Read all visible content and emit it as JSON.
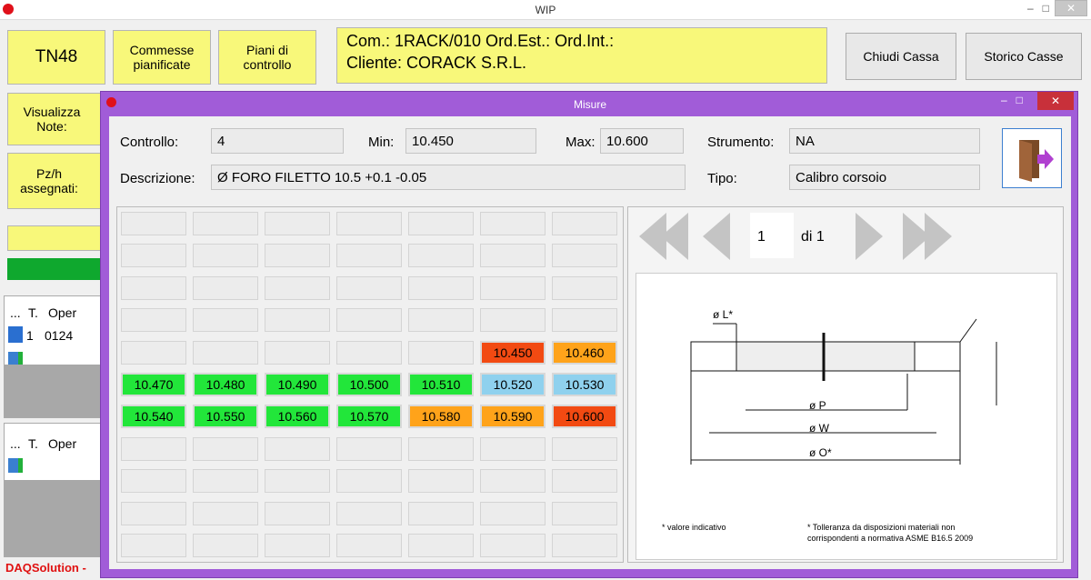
{
  "main_window": {
    "title": "WIP",
    "buttons": {
      "machine": "TN48",
      "planned": "Commesse pianificate",
      "plans": "Piani di controllo",
      "close_box": "Chiudi Cassa",
      "box_history": "Storico Casse",
      "notes": "Visualizza Note:",
      "pieces": "Pz/h assegnati:"
    },
    "order_info": {
      "line1": "Com.: 1RACK/010  Ord.Est.:  Ord.Int.:",
      "line2": "Cliente: CORACK S.R.L."
    },
    "operators_table_1": {
      "headers": [
        "...",
        "T.",
        "Oper"
      ],
      "row": [
        "1",
        "0124"
      ]
    },
    "operators_table_2": {
      "headers": [
        "...",
        "T.",
        "Oper"
      ]
    },
    "footer": "DAQSolution -"
  },
  "dialog": {
    "title": "Misure",
    "fields": {
      "control_label": "Controllo:",
      "control_value": "4",
      "min_label": "Min:",
      "min_value": "10.450",
      "max_label": "Max:",
      "max_value": "10.600",
      "instrument_label": "Strumento:",
      "instrument_value": "NA",
      "description_label": "Descrizione:",
      "description_value": "Ø FORO FILETTO 10.5 +0.1 -0.05",
      "type_label": "Tipo:",
      "type_value": "Calibro corsoio"
    },
    "grid": {
      "rows": [
        [
          null,
          null,
          null,
          null,
          null,
          null,
          null
        ],
        [
          null,
          null,
          null,
          null,
          null,
          null,
          null
        ],
        [
          null,
          null,
          null,
          null,
          null,
          null,
          null
        ],
        [
          null,
          null,
          null,
          null,
          null,
          null,
          null
        ],
        [
          null,
          null,
          null,
          null,
          null,
          {
            "text": "10.450",
            "color": "#f24a12"
          },
          {
            "text": "10.460",
            "color": "#ffa31a"
          }
        ],
        [
          {
            "text": "10.470",
            "color": "#22e63a"
          },
          {
            "text": "10.480",
            "color": "#22e63a"
          },
          {
            "text": "10.490",
            "color": "#22e63a"
          },
          {
            "text": "10.500",
            "color": "#22e63a"
          },
          {
            "text": "10.510",
            "color": "#22e63a"
          },
          {
            "text": "10.520",
            "color": "#8fd1ee"
          },
          {
            "text": "10.530",
            "color": "#8fd1ee"
          }
        ],
        [
          {
            "text": "10.540",
            "color": "#22e63a"
          },
          {
            "text": "10.550",
            "color": "#22e63a"
          },
          {
            "text": "10.560",
            "color": "#22e63a"
          },
          {
            "text": "10.570",
            "color": "#22e63a"
          },
          {
            "text": "10.580",
            "color": "#ffa31a"
          },
          {
            "text": "10.590",
            "color": "#ffa31a"
          },
          {
            "text": "10.600",
            "color": "#f24a12"
          }
        ],
        [
          null,
          null,
          null,
          null,
          null,
          null,
          null
        ],
        [
          null,
          null,
          null,
          null,
          null,
          null,
          null
        ],
        [
          null,
          null,
          null,
          null,
          null,
          null,
          null
        ],
        [
          null,
          null,
          null,
          null,
          null,
          null,
          null
        ]
      ]
    },
    "pager": {
      "page": "1",
      "of": "di 1"
    },
    "drawing": {
      "l": "ø L*",
      "p": "ø P",
      "w": "ø W",
      "o": "ø O*",
      "note1": "* valore indicativo",
      "note2a": "* Tolleranza da disposizioni materiali non",
      "note2b": "corrispondenti a normativa ASME B16.5 2009"
    }
  }
}
